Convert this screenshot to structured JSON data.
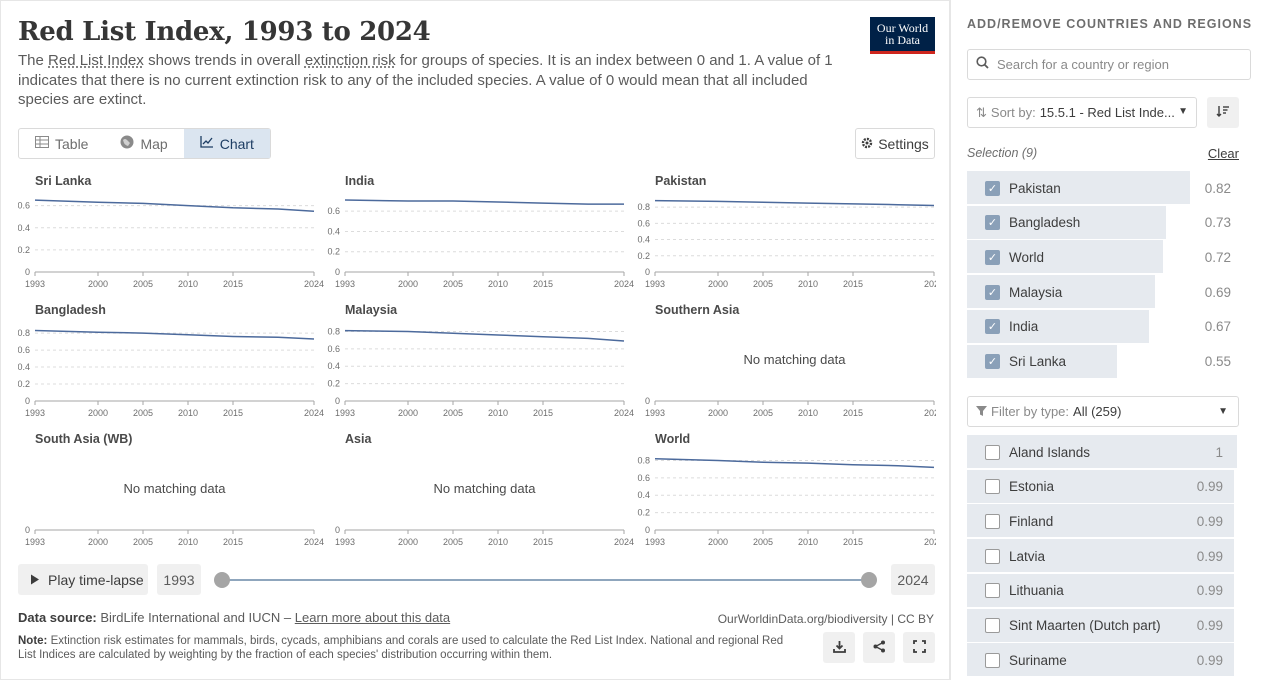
{
  "header": {
    "title": "Red List Index, 1993 to 2024",
    "subtitle_parts": [
      "The ",
      "Red List Index",
      " shows trends in overall ",
      "extinction risk",
      " for groups of species. It is an index between 0 and 1. A value of 1 indicates that there is no current extinction risk to any of the included species. A value of 0 would mean that all included species are extinct."
    ],
    "logo_line1": "Our World",
    "logo_line2": "in Data"
  },
  "tabs": [
    {
      "label": "Table",
      "icon": "table-icon"
    },
    {
      "label": "Map",
      "icon": "globe-icon"
    },
    {
      "label": "Chart",
      "icon": "line-chart-icon"
    }
  ],
  "settings_label": "Settings",
  "colors": {
    "line": "#4c6a9c",
    "accent": "#1d3d63",
    "selection_bar": "#e6eaef"
  },
  "chart_data": {
    "type": "line",
    "layout": "small-multiples",
    "x_ticks": [
      "1993",
      "2000",
      "2005",
      "2010",
      "2015",
      "2024"
    ],
    "x_tick_values": [
      1993,
      2000,
      2005,
      2010,
      2015,
      2024
    ],
    "xlim": [
      1993,
      2024
    ],
    "no_data_label": "No matching data",
    "panels": [
      {
        "name": "Sri Lanka",
        "y_ticks": [
          0,
          0.2,
          0.4,
          0.6
        ],
        "ylim": [
          0,
          0.66
        ],
        "x": [
          1993,
          2000,
          2005,
          2010,
          2015,
          2020,
          2024
        ],
        "y": [
          0.65,
          0.63,
          0.62,
          0.6,
          0.58,
          0.57,
          0.55
        ]
      },
      {
        "name": "India",
        "y_ticks": [
          0,
          0.2,
          0.4,
          0.6
        ],
        "ylim": [
          0,
          0.72
        ],
        "x": [
          1993,
          2000,
          2005,
          2010,
          2015,
          2020,
          2024
        ],
        "y": [
          0.71,
          0.7,
          0.7,
          0.69,
          0.68,
          0.67,
          0.67
        ]
      },
      {
        "name": "Pakistan",
        "y_ticks": [
          0,
          0.2,
          0.4,
          0.6,
          0.8
        ],
        "ylim": [
          0,
          0.9
        ],
        "x": [
          1993,
          2000,
          2005,
          2010,
          2015,
          2020,
          2024
        ],
        "y": [
          0.88,
          0.87,
          0.86,
          0.85,
          0.84,
          0.83,
          0.82
        ]
      },
      {
        "name": "Bangladesh",
        "y_ticks": [
          0,
          0.2,
          0.4,
          0.6,
          0.8
        ],
        "ylim": [
          0,
          0.86
        ],
        "x": [
          1993,
          2000,
          2005,
          2010,
          2015,
          2020,
          2024
        ],
        "y": [
          0.83,
          0.81,
          0.8,
          0.78,
          0.76,
          0.75,
          0.73
        ]
      },
      {
        "name": "Malaysia",
        "y_ticks": [
          0,
          0.2,
          0.4,
          0.6,
          0.8
        ],
        "ylim": [
          0,
          0.84
        ],
        "x": [
          1993,
          2000,
          2005,
          2010,
          2015,
          2020,
          2024
        ],
        "y": [
          0.81,
          0.8,
          0.78,
          0.76,
          0.74,
          0.72,
          0.69
        ]
      },
      {
        "name": "Southern Asia",
        "no_data": true,
        "y_ticks": [
          0
        ]
      },
      {
        "name": "South Asia (WB)",
        "no_data": true,
        "y_ticks": [
          0
        ]
      },
      {
        "name": "Asia",
        "no_data": true,
        "y_ticks": [
          0
        ]
      },
      {
        "name": "World",
        "y_ticks": [
          0,
          0.2,
          0.4,
          0.6,
          0.8
        ],
        "ylim": [
          0,
          0.84
        ],
        "x": [
          1993,
          2000,
          2005,
          2010,
          2015,
          2020,
          2024
        ],
        "y": [
          0.82,
          0.8,
          0.78,
          0.77,
          0.75,
          0.74,
          0.72
        ]
      }
    ]
  },
  "timeline": {
    "play_label": "Play time-lapse",
    "start_year": "1993",
    "end_year": "2024"
  },
  "footer": {
    "source_label": "Data source:",
    "source_text": "BirdLife International and IUCN – ",
    "learn_more": "Learn more about this data",
    "url": "OurWorldinData.org/biodiversity | CC BY",
    "note_label": "Note:",
    "note_text": "Extinction risk estimates for mammals, birds, cycads, amphibians and corals are used to calculate the Red List Index. National and regional Red List Indices are calculated by weighting by the fraction of each species' distribution occurring within them."
  },
  "sidebar": {
    "title": "ADD/REMOVE COUNTRIES AND REGIONS",
    "search_placeholder": "Search for a country or region",
    "sort_label": "Sort by:",
    "sort_value": "15.5.1 - Red List Inde...",
    "selection_label": "Selection (9)",
    "clear_label": "Clear",
    "selected": [
      {
        "name": "Pakistan",
        "value": "0.82",
        "fraction": 0.82
      },
      {
        "name": "Bangladesh",
        "value": "0.73",
        "fraction": 0.73
      },
      {
        "name": "World",
        "value": "0.72",
        "fraction": 0.72
      },
      {
        "name": "Malaysia",
        "value": "0.69",
        "fraction": 0.69
      },
      {
        "name": "India",
        "value": "0.67",
        "fraction": 0.67
      },
      {
        "name": "Sri Lanka",
        "value": "0.55",
        "fraction": 0.55
      }
    ],
    "filter_label": "Filter by type:",
    "filter_value": "All (259)",
    "available": [
      {
        "name": "Aland Islands",
        "value": "1",
        "fraction": 1.0
      },
      {
        "name": "Estonia",
        "value": "0.99",
        "fraction": 0.99
      },
      {
        "name": "Finland",
        "value": "0.99",
        "fraction": 0.99
      },
      {
        "name": "Latvia",
        "value": "0.99",
        "fraction": 0.99
      },
      {
        "name": "Lithuania",
        "value": "0.99",
        "fraction": 0.99
      },
      {
        "name": "Sint Maarten (Dutch part)",
        "value": "0.99",
        "fraction": 0.99
      },
      {
        "name": "Suriname",
        "value": "0.99",
        "fraction": 0.99
      }
    ]
  }
}
